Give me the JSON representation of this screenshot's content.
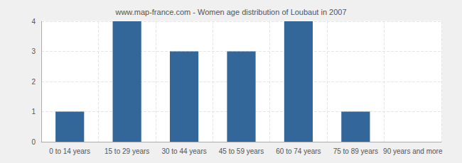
{
  "chart_data": {
    "type": "bar",
    "title": "www.map-france.com - Women age distribution of Loubaut in 2007",
    "categories": [
      "0 to 14 years",
      "15 to 29 years",
      "30 to 44 years",
      "45 to 59 years",
      "60 to 74 years",
      "75 to 89 years",
      "90 years and more"
    ],
    "values": [
      1,
      4,
      3,
      3,
      4,
      1,
      0
    ],
    "color": "#336699",
    "ylim": [
      0,
      4
    ],
    "yticks": [
      0,
      1,
      2,
      3,
      4
    ],
    "grid": true
  }
}
